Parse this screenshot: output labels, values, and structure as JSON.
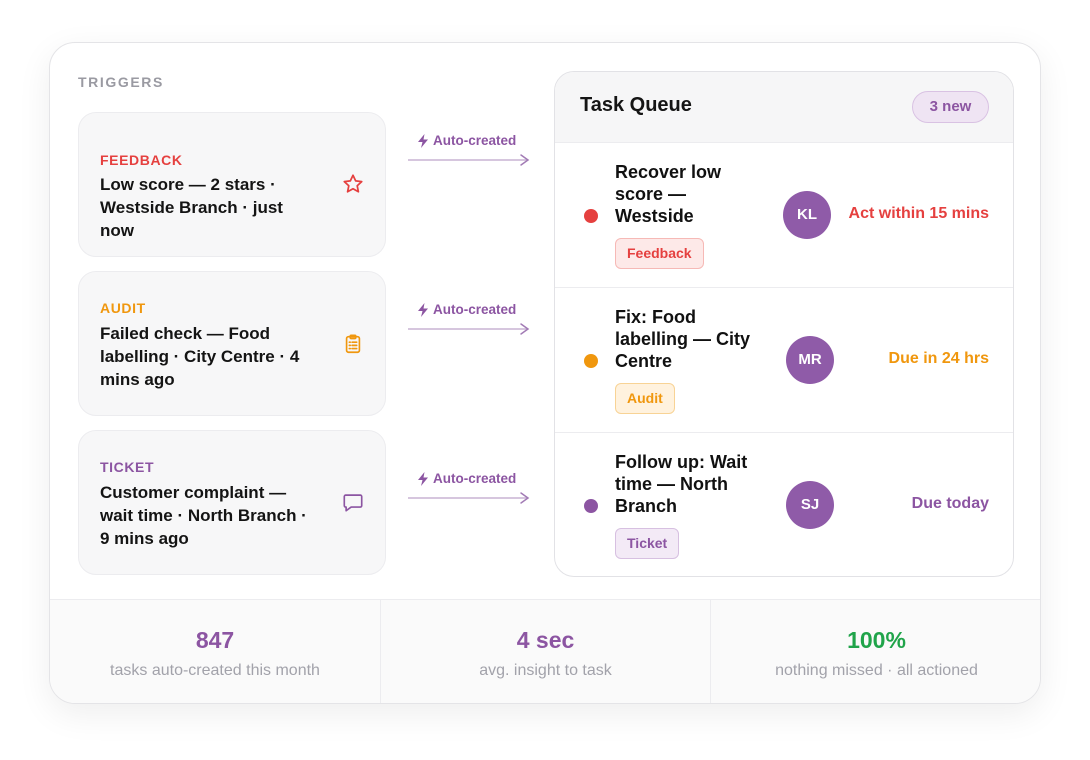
{
  "colors": {
    "feedback": "#e5403f",
    "audit": "#f0970e",
    "ticket": "#8c55a2",
    "success": "#20a44a",
    "avatar": "#8f5ba8"
  },
  "triggers": {
    "title": "TRIGGERS",
    "items": [
      {
        "type": "FEEDBACK",
        "text": "Low score — 2 stars · Westside Branch · just now",
        "icon": "star-icon"
      },
      {
        "type": "AUDIT",
        "text": "Failed check — Food labelling · City Centre · 4 mins ago",
        "icon": "clipboard-icon"
      },
      {
        "type": "TICKET",
        "text": "Customer complaint — wait time · North Branch · 9 mins ago",
        "icon": "chat-bubble-icon"
      }
    ]
  },
  "connectors": [
    {
      "label": "Auto-created",
      "icon": "lightning-icon"
    },
    {
      "label": "Auto-created",
      "icon": "lightning-icon"
    },
    {
      "label": "Auto-created",
      "icon": "lightning-icon"
    }
  ],
  "queue": {
    "title": "Task Queue",
    "badge": "3 new",
    "tasks": [
      {
        "title": "Recover low score — Westside",
        "tag": "Feedback",
        "assignee": "KL",
        "due": "Act within 15 mins"
      },
      {
        "title": "Fix: Food labelling — City Centre",
        "tag": "Audit",
        "assignee": "MR",
        "due": "Due in 24 hrs"
      },
      {
        "title": "Follow up: Wait time — North Branch",
        "tag": "Ticket",
        "assignee": "SJ",
        "due": "Due today"
      }
    ]
  },
  "stats": [
    {
      "value": "847",
      "caption": "tasks auto-created this month"
    },
    {
      "value": "4 sec",
      "caption": "avg. insight to task"
    },
    {
      "value": "100%",
      "caption": "nothing missed · all actioned"
    }
  ]
}
